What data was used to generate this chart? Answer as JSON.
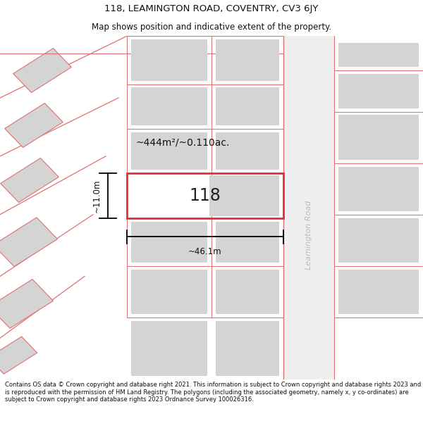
{
  "title_line1": "118, LEAMINGTON ROAD, COVENTRY, CV3 6JY",
  "title_line2": "Map shows position and indicative extent of the property.",
  "footer_text": "Contains OS data © Crown copyright and database right 2021. This information is subject to Crown copyright and database rights 2023 and is reproduced with the permission of HM Land Registry. The polygons (including the associated geometry, namely x, y co-ordinates) are subject to Crown copyright and database rights 2023 Ordnance Survey 100026316.",
  "property_label": "118",
  "area_label": "~444m²/~0.110ac.",
  "width_label": "~46.1m",
  "height_label": "~11.0m",
  "background_color": "#ffffff",
  "map_bg_color": "#f7f7f7",
  "plot_color": "#ffffff",
  "highlight_color": "#e03030",
  "road_line_color": "#e07070",
  "building_color": "#d4d4d4",
  "road_text_color": "#bbbbbb",
  "road_bg_color": "#efefef",
  "fig_width": 6.0,
  "fig_height": 6.25,
  "title_fontsize": 9.5,
  "subtitle_fontsize": 8.5,
  "footer_fontsize": 6.0
}
